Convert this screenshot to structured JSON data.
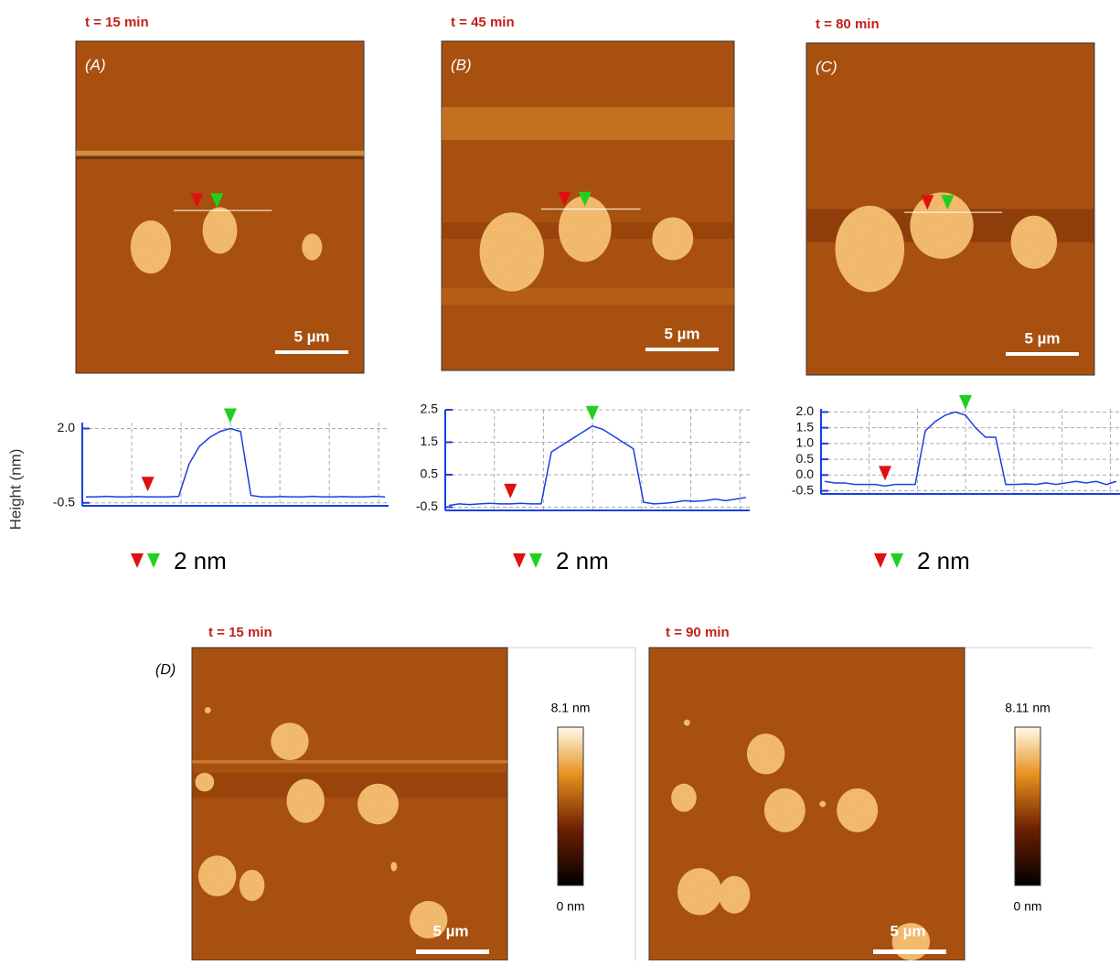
{
  "panels": [
    {
      "label": "(A)",
      "time": "t = 15 min",
      "scale_bar": "5 µm",
      "step": "2 nm",
      "profile": {
        "type": "line",
        "color": "#1a3fe0",
        "ylim": [
          -0.6,
          2.2
        ],
        "yticks": [
          {
            "value": 2,
            "label": "2.0"
          },
          -0.5
        ],
        "values": [
          -0.3,
          -0.3,
          -0.28,
          -0.3,
          -0.3,
          -0.29,
          -0.3,
          -0.3,
          -0.3,
          -0.28,
          0.8,
          1.4,
          1.7,
          1.9,
          2.0,
          1.9,
          -0.25,
          -0.3,
          -0.3,
          -0.29,
          -0.3,
          -0.3,
          -0.28,
          -0.3,
          -0.3,
          -0.29,
          -0.3,
          -0.3,
          -0.28,
          -0.3
        ]
      }
    },
    {
      "label": "(B)",
      "time": "t = 45 min",
      "scale_bar": "5 µm",
      "step": "2 nm",
      "profile": {
        "type": "line",
        "color": "#1a3fe0",
        "ylim": [
          -0.6,
          2.5
        ],
        "yticks": [
          2.5,
          1.5,
          0.5,
          -0.5
        ],
        "values": [
          -0.45,
          -0.4,
          -0.42,
          -0.4,
          -0.38,
          -0.4,
          -0.4,
          -0.38,
          -0.4,
          -0.4,
          1.2,
          1.4,
          1.6,
          1.8,
          2.0,
          1.9,
          1.7,
          1.5,
          1.3,
          -0.35,
          -0.4,
          -0.38,
          -0.35,
          -0.3,
          -0.32,
          -0.3,
          -0.25,
          -0.3,
          -0.25,
          -0.2
        ]
      }
    },
    {
      "label": "(C)",
      "time": "t = 80 min",
      "scale_bar": "5 µm",
      "step": "2 nm",
      "profile": {
        "type": "line",
        "color": "#1a3fe0",
        "ylim": [
          -0.6,
          2.1
        ],
        "yticks": [
          {
            "value": 2,
            "label": "2.0"
          },
          1.5,
          {
            "value": 1,
            "label": "1.0"
          },
          0.5,
          {
            "value": 0,
            "label": "0.0"
          },
          -0.5
        ],
        "values": [
          -0.2,
          -0.25,
          -0.25,
          -0.3,
          -0.3,
          -0.3,
          -0.35,
          -0.3,
          -0.3,
          -0.3,
          1.4,
          1.7,
          1.9,
          2.0,
          1.9,
          1.5,
          1.2,
          1.2,
          -0.3,
          -0.3,
          -0.28,
          -0.3,
          -0.25,
          -0.3,
          -0.25,
          -0.2,
          -0.25,
          -0.2,
          -0.3,
          -0.2
        ]
      }
    }
  ],
  "y_axis_label": "Height (nm)",
  "panel_d": {
    "label": "(D)",
    "images": [
      {
        "time": "t = 15 min",
        "scale_bar": "5 µm",
        "colorbar_max": "8.1 nm",
        "colorbar_min": "0 nm"
      },
      {
        "time": "t = 90 min",
        "scale_bar": "5 µm",
        "colorbar_max": "8.11 nm",
        "colorbar_min": "0 nm"
      }
    ]
  }
}
